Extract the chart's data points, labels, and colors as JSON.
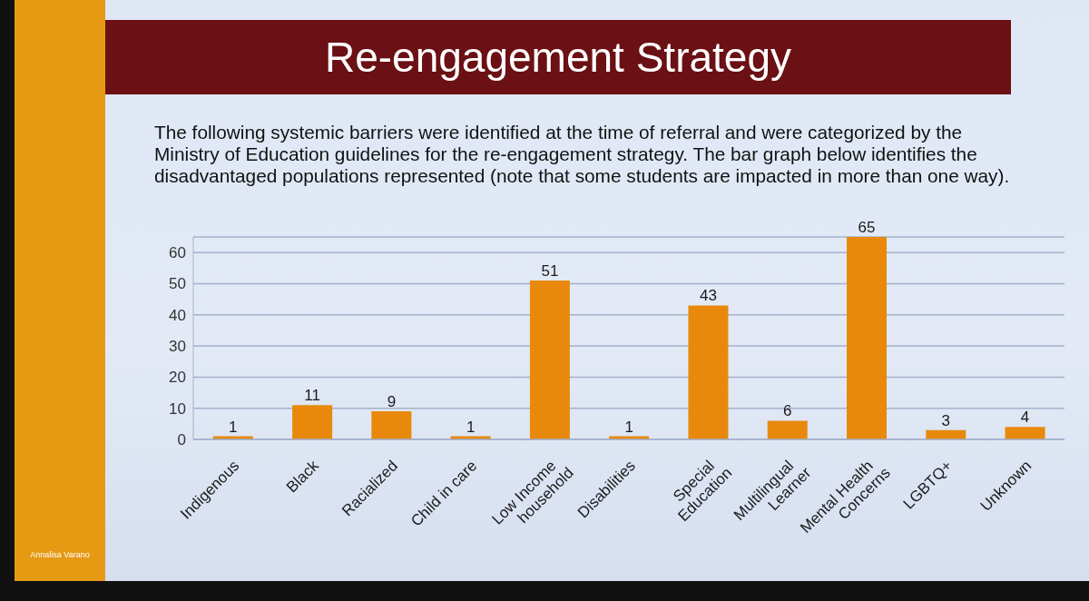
{
  "chart_data": {
    "type": "bar",
    "title": "Re-engagement Strategy",
    "subtitle": "The following systemic barriers were identified at the time of referral and were categorized by the Ministry of Education guidelines for the re-engagement strategy. The bar graph below identifies the disadvantaged populations represented (note that some students are impacted in more than one way).",
    "categories": [
      "Indigenous",
      "Black",
      "Racialized",
      "Child in care",
      "Low Income\nhousehold",
      "Disabilities",
      "Special\nEducation",
      "Multilingual\nLearner",
      "Mental Health\nConcerns",
      "LGBTQ+",
      "Unknown"
    ],
    "values": [
      1,
      11,
      9,
      1,
      51,
      1,
      43,
      6,
      65,
      3,
      4
    ],
    "color": "#e8890c",
    "ylim": [
      0,
      65
    ],
    "yticks": [
      0,
      10,
      20,
      30,
      40,
      50,
      60
    ],
    "grid": "y",
    "data_labels": true,
    "annotations": [
      "Annalisa Varano"
    ]
  }
}
